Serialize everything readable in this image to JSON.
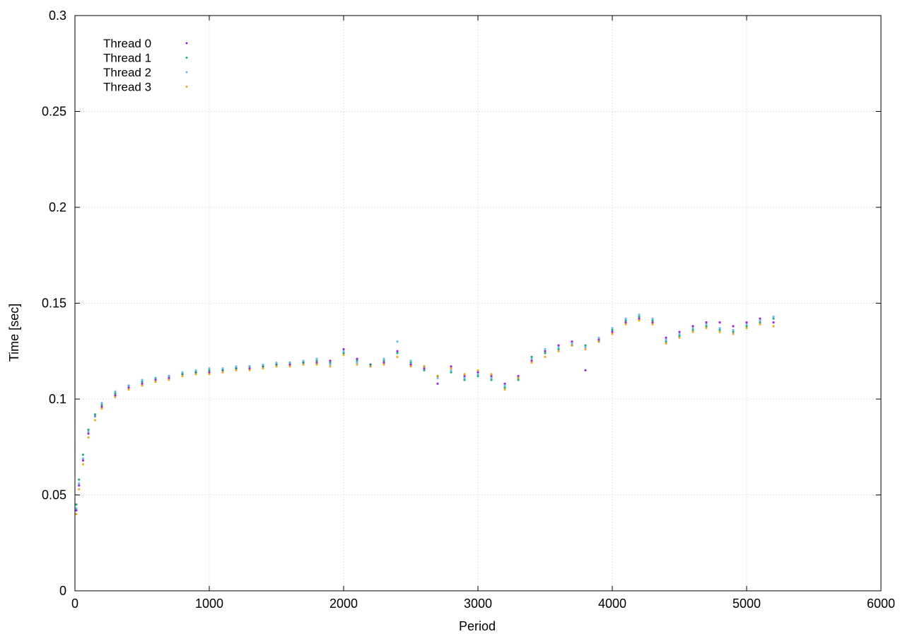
{
  "chart_data": {
    "type": "scatter",
    "title": "",
    "xlabel": "Period",
    "ylabel": "Time [sec]",
    "xlim": [
      0,
      6000
    ],
    "ylim": [
      0,
      0.3
    ],
    "x_ticks": [
      "0",
      "1000",
      "2000",
      "3000",
      "4000",
      "5000",
      "6000"
    ],
    "y_ticks": [
      "0",
      "0.05",
      "0.1",
      "0.15",
      "0.2",
      "0.25",
      "0.3"
    ],
    "grid": true,
    "legend_position": "top-left",
    "series": [
      {
        "name": "Thread 0",
        "color": "#9400d3",
        "points": [
          [
            10,
            0.042
          ],
          [
            30,
            0.055
          ],
          [
            60,
            0.068
          ],
          [
            100,
            0.082
          ],
          [
            150,
            0.091
          ],
          [
            200,
            0.096
          ],
          [
            300,
            0.102
          ],
          [
            400,
            0.106
          ],
          [
            500,
            0.108
          ],
          [
            600,
            0.11
          ],
          [
            700,
            0.111
          ],
          [
            800,
            0.113
          ],
          [
            900,
            0.114
          ],
          [
            1000,
            0.114
          ],
          [
            1100,
            0.115
          ],
          [
            1200,
            0.116
          ],
          [
            1300,
            0.116
          ],
          [
            1400,
            0.117
          ],
          [
            1500,
            0.118
          ],
          [
            1600,
            0.118
          ],
          [
            1700,
            0.119
          ],
          [
            1800,
            0.119
          ],
          [
            1900,
            0.12
          ],
          [
            2000,
            0.126
          ],
          [
            2100,
            0.121
          ],
          [
            2200,
            0.118
          ],
          [
            2300,
            0.119
          ],
          [
            2400,
            0.125
          ],
          [
            2500,
            0.118
          ],
          [
            2600,
            0.116
          ],
          [
            2700,
            0.108
          ],
          [
            2800,
            0.117
          ],
          [
            2900,
            0.112
          ],
          [
            3000,
            0.114
          ],
          [
            3100,
            0.112
          ],
          [
            3200,
            0.108
          ],
          [
            3300,
            0.112
          ],
          [
            3400,
            0.12
          ],
          [
            3500,
            0.125
          ],
          [
            3600,
            0.128
          ],
          [
            3700,
            0.13
          ],
          [
            3800,
            0.115
          ],
          [
            3900,
            0.131
          ],
          [
            4000,
            0.135
          ],
          [
            4100,
            0.14
          ],
          [
            4200,
            0.142
          ],
          [
            4300,
            0.14
          ],
          [
            4400,
            0.132
          ],
          [
            4500,
            0.135
          ],
          [
            4600,
            0.138
          ],
          [
            4700,
            0.14
          ],
          [
            4800,
            0.14
          ],
          [
            4900,
            0.138
          ],
          [
            5000,
            0.14
          ],
          [
            5100,
            0.142
          ],
          [
            5200,
            0.14
          ]
        ]
      },
      {
        "name": "Thread 1",
        "color": "#009e73",
        "points": [
          [
            10,
            0.045
          ],
          [
            30,
            0.058
          ],
          [
            60,
            0.071
          ],
          [
            100,
            0.084
          ],
          [
            150,
            0.092
          ],
          [
            200,
            0.097
          ],
          [
            300,
            0.103
          ],
          [
            400,
            0.107
          ],
          [
            500,
            0.109
          ],
          [
            600,
            0.111
          ],
          [
            700,
            0.112
          ],
          [
            800,
            0.113
          ],
          [
            900,
            0.114
          ],
          [
            1000,
            0.115
          ],
          [
            1100,
            0.115
          ],
          [
            1200,
            0.116
          ],
          [
            1300,
            0.117
          ],
          [
            1400,
            0.117
          ],
          [
            1500,
            0.118
          ],
          [
            1600,
            0.119
          ],
          [
            1700,
            0.119
          ],
          [
            1800,
            0.12
          ],
          [
            1900,
            0.119
          ],
          [
            2000,
            0.124
          ],
          [
            2100,
            0.12
          ],
          [
            2200,
            0.118
          ],
          [
            2300,
            0.12
          ],
          [
            2400,
            0.124
          ],
          [
            2500,
            0.119
          ],
          [
            2600,
            0.115
          ],
          [
            2700,
            0.112
          ],
          [
            2800,
            0.114
          ],
          [
            2900,
            0.11
          ],
          [
            3000,
            0.112
          ],
          [
            3100,
            0.11
          ],
          [
            3200,
            0.106
          ],
          [
            3300,
            0.11
          ],
          [
            3400,
            0.122
          ],
          [
            3500,
            0.124
          ],
          [
            3600,
            0.126
          ],
          [
            3700,
            0.128
          ],
          [
            3800,
            0.128
          ],
          [
            3900,
            0.13
          ],
          [
            4000,
            0.136
          ],
          [
            4100,
            0.141
          ],
          [
            4200,
            0.143
          ],
          [
            4300,
            0.141
          ],
          [
            4400,
            0.13
          ],
          [
            4500,
            0.133
          ],
          [
            4600,
            0.136
          ],
          [
            4700,
            0.138
          ],
          [
            4800,
            0.136
          ],
          [
            4900,
            0.135
          ],
          [
            5000,
            0.138
          ],
          [
            5100,
            0.14
          ],
          [
            5200,
            0.142
          ]
        ]
      },
      {
        "name": "Thread 2",
        "color": "#56b4e9",
        "points": [
          [
            10,
            0.043
          ],
          [
            30,
            0.056
          ],
          [
            60,
            0.069
          ],
          [
            100,
            0.083
          ],
          [
            150,
            0.091
          ],
          [
            200,
            0.098
          ],
          [
            300,
            0.104
          ],
          [
            400,
            0.107
          ],
          [
            500,
            0.11
          ],
          [
            600,
            0.111
          ],
          [
            700,
            0.112
          ],
          [
            800,
            0.114
          ],
          [
            900,
            0.115
          ],
          [
            1000,
            0.116
          ],
          [
            1100,
            0.116
          ],
          [
            1200,
            0.117
          ],
          [
            1300,
            0.117
          ],
          [
            1400,
            0.118
          ],
          [
            1500,
            0.119
          ],
          [
            1600,
            0.119
          ],
          [
            1700,
            0.12
          ],
          [
            1800,
            0.121
          ],
          [
            1900,
            0.118
          ],
          [
            2000,
            0.125
          ],
          [
            2100,
            0.119
          ],
          [
            2200,
            0.117
          ],
          [
            2300,
            0.121
          ],
          [
            2400,
            0.13
          ],
          [
            2500,
            0.12
          ],
          [
            2600,
            0.117
          ],
          [
            2700,
            0.111
          ],
          [
            2800,
            0.115
          ],
          [
            2900,
            0.111
          ],
          [
            3000,
            0.113
          ],
          [
            3100,
            0.111
          ],
          [
            3200,
            0.107
          ],
          [
            3300,
            0.111
          ],
          [
            3400,
            0.121
          ],
          [
            3500,
            0.126
          ],
          [
            3600,
            0.127
          ],
          [
            3700,
            0.129
          ],
          [
            3800,
            0.127
          ],
          [
            3900,
            0.132
          ],
          [
            4000,
            0.137
          ],
          [
            4100,
            0.142
          ],
          [
            4200,
            0.144
          ],
          [
            4300,
            0.142
          ],
          [
            4400,
            0.131
          ],
          [
            4500,
            0.134
          ],
          [
            4600,
            0.137
          ],
          [
            4700,
            0.139
          ],
          [
            4800,
            0.137
          ],
          [
            4900,
            0.136
          ],
          [
            5000,
            0.139
          ],
          [
            5100,
            0.141
          ],
          [
            5200,
            0.143
          ]
        ]
      },
      {
        "name": "Thread 3",
        "color": "#e69f00",
        "points": [
          [
            10,
            0.04
          ],
          [
            30,
            0.053
          ],
          [
            60,
            0.066
          ],
          [
            100,
            0.08
          ],
          [
            150,
            0.089
          ],
          [
            200,
            0.095
          ],
          [
            300,
            0.101
          ],
          [
            400,
            0.105
          ],
          [
            500,
            0.107
          ],
          [
            600,
            0.109
          ],
          [
            700,
            0.11
          ],
          [
            800,
            0.112
          ],
          [
            900,
            0.113
          ],
          [
            1000,
            0.113
          ],
          [
            1100,
            0.114
          ],
          [
            1200,
            0.115
          ],
          [
            1300,
            0.115
          ],
          [
            1400,
            0.116
          ],
          [
            1500,
            0.117
          ],
          [
            1600,
            0.117
          ],
          [
            1700,
            0.118
          ],
          [
            1800,
            0.118
          ],
          [
            1900,
            0.117
          ],
          [
            2000,
            0.123
          ],
          [
            2100,
            0.118
          ],
          [
            2200,
            0.117
          ],
          [
            2300,
            0.118
          ],
          [
            2400,
            0.122
          ],
          [
            2500,
            0.117
          ],
          [
            2600,
            0.117
          ],
          [
            2700,
            0.112
          ],
          [
            2800,
            0.116
          ],
          [
            2900,
            0.113
          ],
          [
            3000,
            0.115
          ],
          [
            3100,
            0.113
          ],
          [
            3200,
            0.105
          ],
          [
            3300,
            0.111
          ],
          [
            3400,
            0.119
          ],
          [
            3500,
            0.122
          ],
          [
            3600,
            0.125
          ],
          [
            3700,
            0.128
          ],
          [
            3800,
            0.126
          ],
          [
            3900,
            0.13
          ],
          [
            4000,
            0.134
          ],
          [
            4100,
            0.139
          ],
          [
            4200,
            0.141
          ],
          [
            4300,
            0.139
          ],
          [
            4400,
            0.129
          ],
          [
            4500,
            0.132
          ],
          [
            4600,
            0.135
          ],
          [
            4700,
            0.137
          ],
          [
            4800,
            0.135
          ],
          [
            4900,
            0.134
          ],
          [
            5000,
            0.137
          ],
          [
            5100,
            0.139
          ],
          [
            5200,
            0.138
          ]
        ]
      }
    ]
  }
}
